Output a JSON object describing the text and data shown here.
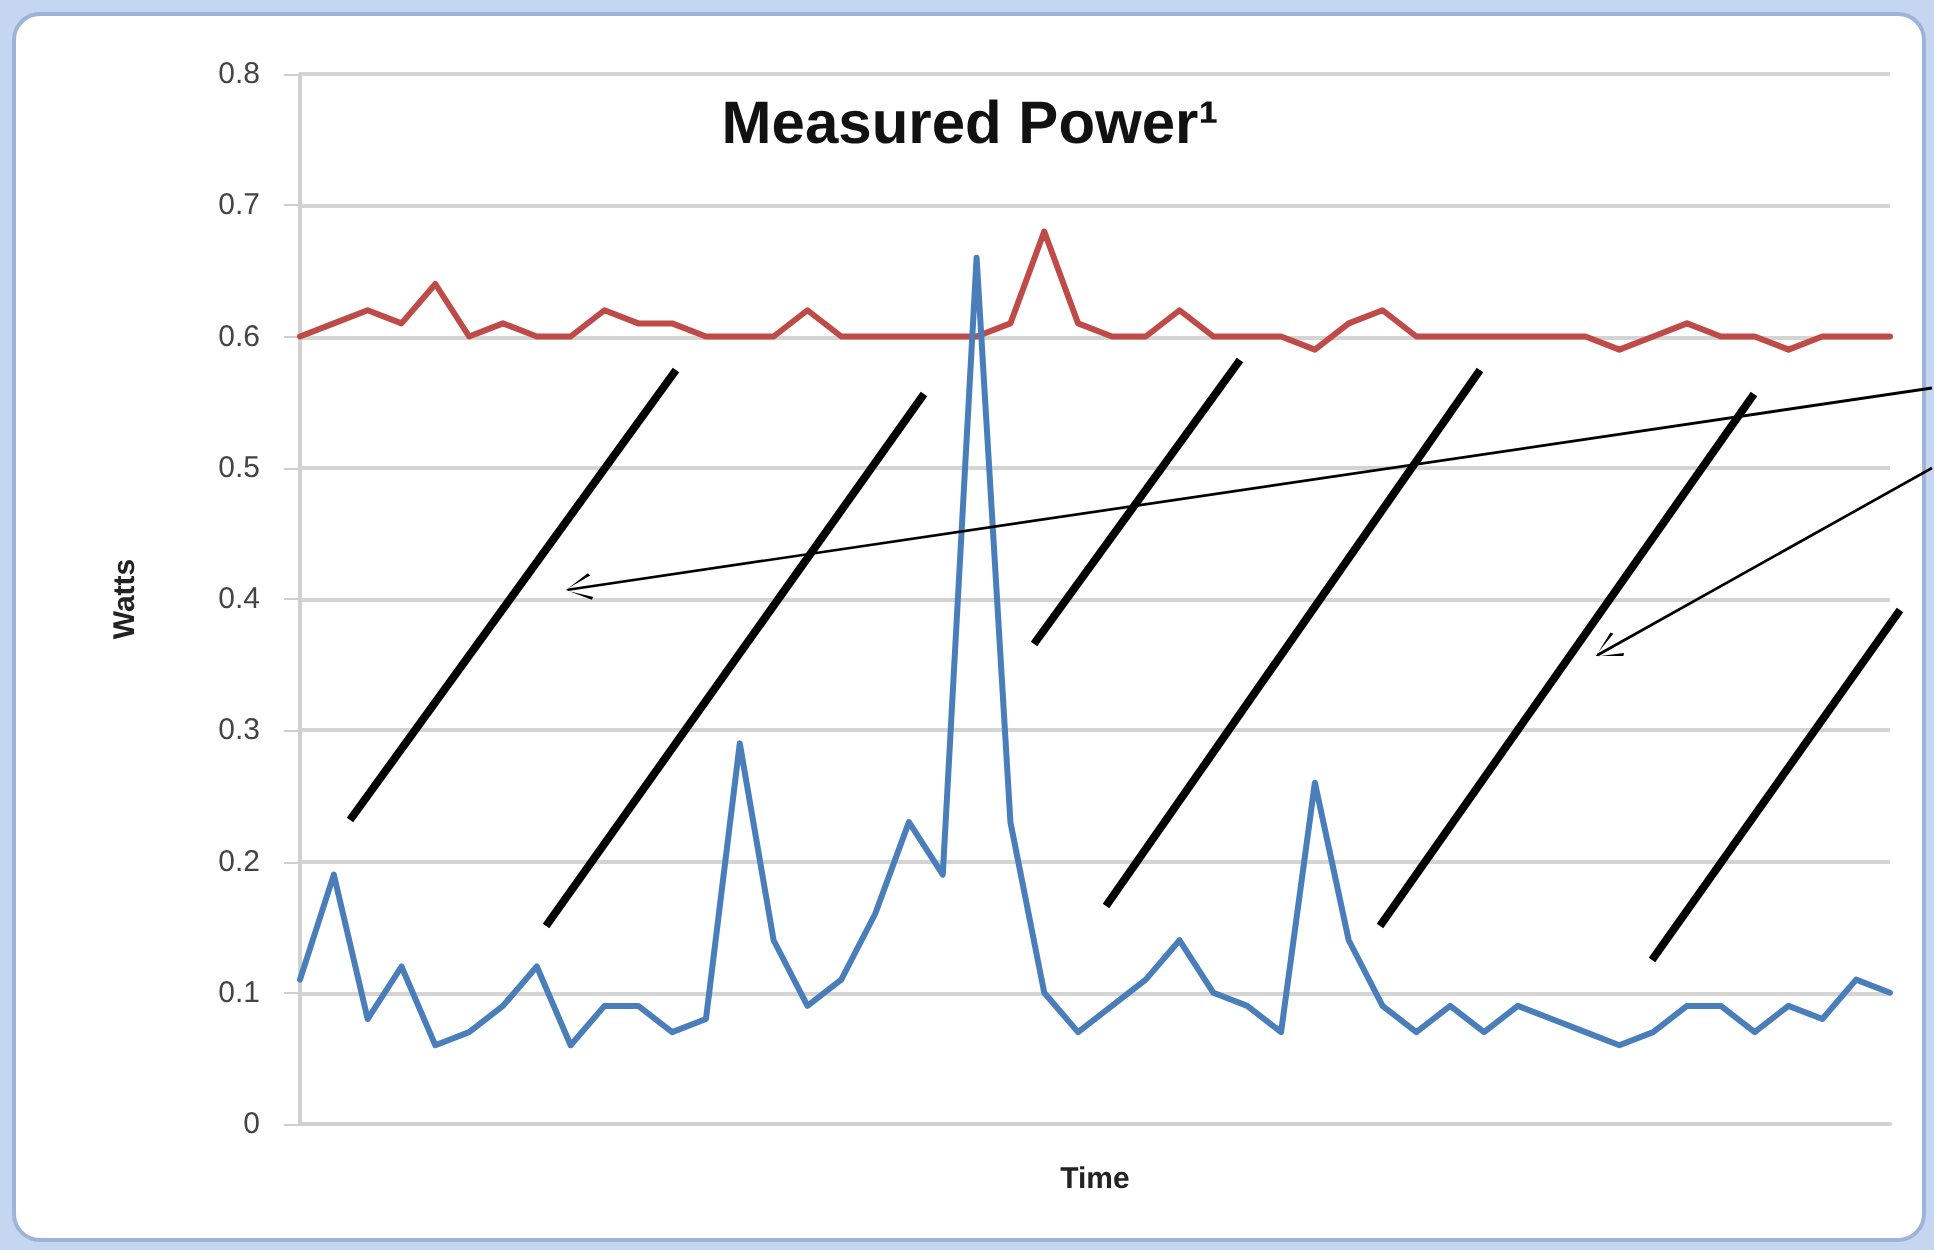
{
  "chart_data": {
    "type": "line",
    "title": "Measured Power¹",
    "xlabel": "Time",
    "ylabel": "Watts",
    "categories": [
      null,
      null,
      null,
      null,
      null,
      null,
      null,
      null,
      null,
      null,
      null,
      null,
      null,
      null,
      null,
      null,
      null,
      null,
      null,
      null,
      null,
      null,
      null,
      null,
      null,
      null,
      null,
      null,
      null,
      null,
      null,
      null,
      null,
      null,
      null,
      null,
      null,
      null,
      null,
      null,
      null,
      null,
      null,
      null,
      null,
      null,
      null,
      null
    ],
    "series": [
      {
        "color": "#be4b48",
        "values": [
          0.6,
          0.61,
          0.62,
          0.61,
          0.64,
          0.6,
          0.61,
          0.6,
          0.6,
          0.62,
          0.61,
          0.61,
          0.6,
          0.6,
          0.6,
          0.62,
          0.6,
          0.6,
          0.6,
          0.6,
          0.6,
          0.61,
          0.68,
          0.61,
          0.6,
          0.6,
          0.62,
          0.6,
          0.6,
          0.6,
          0.59,
          0.61,
          0.62,
          0.6,
          0.6,
          0.6,
          0.6,
          0.6,
          0.6,
          0.59,
          0.6,
          0.61,
          0.6,
          0.6,
          0.59,
          0.6,
          0.6,
          0.6
        ]
      },
      {
        "color": "#4a7ebb",
        "values": [
          0.11,
          0.19,
          0.08,
          0.12,
          0.06,
          0.07,
          0.09,
          0.12,
          0.06,
          0.09,
          0.09,
          0.07,
          0.08,
          0.29,
          0.14,
          0.09,
          0.11,
          0.16,
          0.23,
          0.19,
          0.66,
          0.23,
          0.1,
          0.07,
          0.09,
          0.11,
          0.14,
          0.1,
          0.09,
          0.07,
          0.26,
          0.14,
          0.09,
          0.07,
          0.09,
          0.07,
          0.09,
          0.08,
          0.07,
          0.06,
          0.07,
          0.09,
          0.09,
          0.07,
          0.09,
          0.08,
          0.11,
          0.1
        ]
      }
    ],
    "ylim": [
      0,
      0.8
    ],
    "yticks": [
      0,
      0.1,
      0.2,
      0.3,
      0.4,
      0.5,
      0.6,
      0.7,
      0.8
    ],
    "grid": "y",
    "tick_labels": "y",
    "marker": "none",
    "line_style": "solid"
  }
}
